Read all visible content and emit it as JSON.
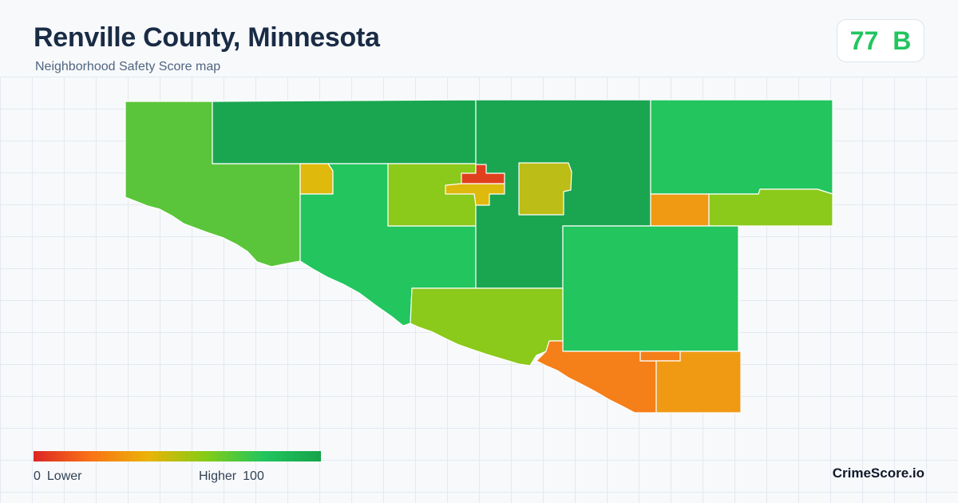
{
  "header": {
    "title": "Renville County, Minnesota",
    "subtitle": "Neighborhood Safety Score map"
  },
  "score": {
    "value": "77",
    "grade": "B",
    "color": "#22c55e"
  },
  "legend": {
    "min": "0",
    "min_label": "Lower",
    "max_label": "Higher",
    "max": "100",
    "colors": [
      "#dc2626",
      "#f97316",
      "#eab308",
      "#84cc16",
      "#22c55e",
      "#16a34a"
    ]
  },
  "brand": "CrimeScore.io",
  "map": {
    "colors": {
      "dark_green": "#1aa650",
      "green": "#22c55e",
      "light_green": "#5ac53a",
      "yellow_green": "#8bc91a",
      "olive": "#bcbd16",
      "gold": "#dfb90c",
      "orange": "#f09a14",
      "dark_orange": "#f57f19",
      "red": "#e0401e"
    }
  }
}
